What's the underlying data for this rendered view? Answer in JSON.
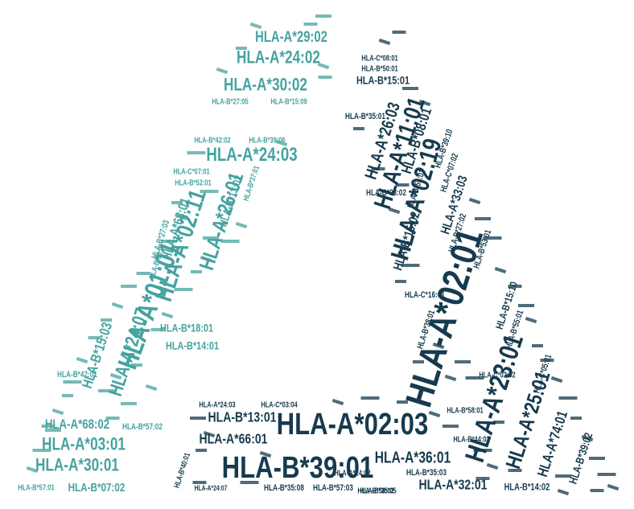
{
  "colors": {
    "light": "#45a3a0",
    "dark": "#163a4e"
  },
  "words": [
    {
      "text": "HLA-A*29:02",
      "size": "lg",
      "tone": "light"
    },
    {
      "text": "HLA-A*24:02",
      "size": "lg",
      "tone": "light"
    },
    {
      "text": "HLA-A*30:02",
      "size": "lg",
      "tone": "light"
    },
    {
      "text": "HLA-B*27:05",
      "size": "sm",
      "tone": "light"
    },
    {
      "text": "HLA-B*15:09",
      "size": "sm",
      "tone": "light"
    },
    {
      "text": "HLA-B*42:02",
      "size": "sm",
      "tone": "light"
    },
    {
      "text": "HLA-B*39:06",
      "size": "sm",
      "tone": "light"
    },
    {
      "text": "HLA-A*24:03",
      "size": "lg",
      "tone": "light"
    },
    {
      "text": "HLA-C*07:01",
      "size": "sm",
      "tone": "light"
    },
    {
      "text": "HLA-B*52:01",
      "size": "sm",
      "tone": "light"
    },
    {
      "text": "HLA-A*26:01",
      "size": "xl",
      "tone": "light"
    },
    {
      "text": "HLA-B*13:02",
      "size": "md",
      "tone": "light"
    },
    {
      "text": "HLA-B*37:01",
      "size": "sm",
      "tone": "light"
    },
    {
      "text": "HLA-A*02:11",
      "size": "xl",
      "tone": "light"
    },
    {
      "text": "HLA-A*68:01",
      "size": "md",
      "tone": "light"
    },
    {
      "text": "HLA-B*27:03",
      "size": "sm",
      "tone": "light"
    },
    {
      "text": "HLA-B*56:01",
      "size": "sm",
      "tone": "light"
    },
    {
      "text": "HLA-A*01:01",
      "size": "xl",
      "tone": "light"
    },
    {
      "text": "HLA-B*18:01",
      "size": "md",
      "tone": "light"
    },
    {
      "text": "HLA-B*14:01",
      "size": "md",
      "tone": "light"
    },
    {
      "text": "HLA-A*24:07",
      "size": "lg",
      "tone": "light"
    },
    {
      "text": "HLA-B*15:03",
      "size": "md",
      "tone": "light"
    },
    {
      "text": "HLA-B*42:01",
      "size": "sm",
      "tone": "light"
    },
    {
      "text": "HLA-A*68:02",
      "size": "md",
      "tone": "light"
    },
    {
      "text": "HLA-B*57:02",
      "size": "sm",
      "tone": "light"
    },
    {
      "text": "HLA-A*03:01",
      "size": "lg",
      "tone": "light"
    },
    {
      "text": "HLA-A*30:01",
      "size": "lg",
      "tone": "light"
    },
    {
      "text": "HLA-B*57:01",
      "size": "sm",
      "tone": "light"
    },
    {
      "text": "HLA-B*07:02",
      "size": "md",
      "tone": "light"
    },
    {
      "text": "HLA-C*08:01",
      "size": "sm",
      "tone": "dark"
    },
    {
      "text": "HLA-B*50:01",
      "size": "sm",
      "tone": "dark"
    },
    {
      "text": "HLA-B*15:01",
      "size": "md",
      "tone": "dark"
    },
    {
      "text": "HLA-B*35:01",
      "size": "sm",
      "tone": "dark"
    },
    {
      "text": "HLA-A*26:03",
      "size": "lg",
      "tone": "dark"
    },
    {
      "text": "HLA-A*11:01",
      "size": "xl",
      "tone": "dark"
    },
    {
      "text": "HLA-B*08:01",
      "size": "md",
      "tone": "dark"
    },
    {
      "text": "HLA-B*39:10",
      "size": "sm",
      "tone": "dark"
    },
    {
      "text": "HLA-C*07:02",
      "size": "sm",
      "tone": "dark"
    },
    {
      "text": "HLA-C*03:02",
      "size": "sm",
      "tone": "dark"
    },
    {
      "text": "HLA-A*02:19",
      "size": "xl",
      "tone": "dark"
    },
    {
      "text": "HLA-B*51:01",
      "size": "sm",
      "tone": "dark"
    },
    {
      "text": "HLA-A*33:03",
      "size": "md",
      "tone": "dark"
    },
    {
      "text": "HLA-B*15:02",
      "size": "md",
      "tone": "dark"
    },
    {
      "text": "HLA-B*27:02",
      "size": "sm",
      "tone": "dark"
    },
    {
      "text": "HLA-B*53:01",
      "size": "sm",
      "tone": "dark"
    },
    {
      "text": "HLA-A*02:01",
      "size": "xxl",
      "tone": "dark"
    },
    {
      "text": "HLA-C*16:01",
      "size": "sm",
      "tone": "dark"
    },
    {
      "text": "HLA-B*15:10",
      "size": "sm",
      "tone": "dark"
    },
    {
      "text": "HLA-B*38:01",
      "size": "sm",
      "tone": "dark"
    },
    {
      "text": "HLA-B*55:01",
      "size": "sm",
      "tone": "dark"
    },
    {
      "text": "HLA-C*02:02",
      "size": "sm",
      "tone": "dark"
    },
    {
      "text": "HLA-C*05:01",
      "size": "sm",
      "tone": "dark"
    },
    {
      "text": "HLA-A*23:01",
      "size": "xl",
      "tone": "dark"
    },
    {
      "text": "HLA-A*25:01",
      "size": "lg",
      "tone": "dark"
    },
    {
      "text": "HLA-A*74:01",
      "size": "md",
      "tone": "dark"
    },
    {
      "text": "HLA-B*39:02",
      "size": "md",
      "tone": "dark"
    },
    {
      "text": "HLA-B*14:02",
      "size": "sm",
      "tone": "dark"
    },
    {
      "text": "HLA-B*13:01",
      "size": "md",
      "tone": "dark"
    },
    {
      "text": "HLA-A*02:03",
      "size": "xl",
      "tone": "dark"
    },
    {
      "text": "HLA-A*66:01",
      "size": "md",
      "tone": "dark"
    },
    {
      "text": "HLA-B*39:01",
      "size": "xl",
      "tone": "dark"
    },
    {
      "text": "HLA-B*40:01",
      "size": "sm",
      "tone": "dark"
    },
    {
      "text": "HLA-B*58:01",
      "size": "sm",
      "tone": "dark"
    },
    {
      "text": "HLA-B*44:02",
      "size": "sm",
      "tone": "dark"
    },
    {
      "text": "HLA-A*36:01",
      "size": "md",
      "tone": "dark"
    },
    {
      "text": "HLA-B*35:03",
      "size": "sm",
      "tone": "dark"
    },
    {
      "text": "HLA-A*32:01",
      "size": "md",
      "tone": "dark"
    },
    {
      "text": "HLA-B*35:08",
      "size": "sm",
      "tone": "dark"
    },
    {
      "text": "HLA-B*57:03",
      "size": "sm",
      "tone": "dark"
    },
    {
      "text": "HLA-B*58:02",
      "size": "sm",
      "tone": "dark"
    },
    {
      "text": "HLA-B*35:05",
      "size": "sm",
      "tone": "dark"
    },
    {
      "text": "HLA-A*24:02",
      "size": "sm",
      "tone": "dark"
    },
    {
      "text": "HLA-A*24:03",
      "size": "sm",
      "tone": "dark"
    },
    {
      "text": "HLA-C*03:04",
      "size": "sm",
      "tone": "dark"
    },
    {
      "text": "HLA-A*24:07",
      "size": "sm",
      "tone": "dark"
    }
  ]
}
